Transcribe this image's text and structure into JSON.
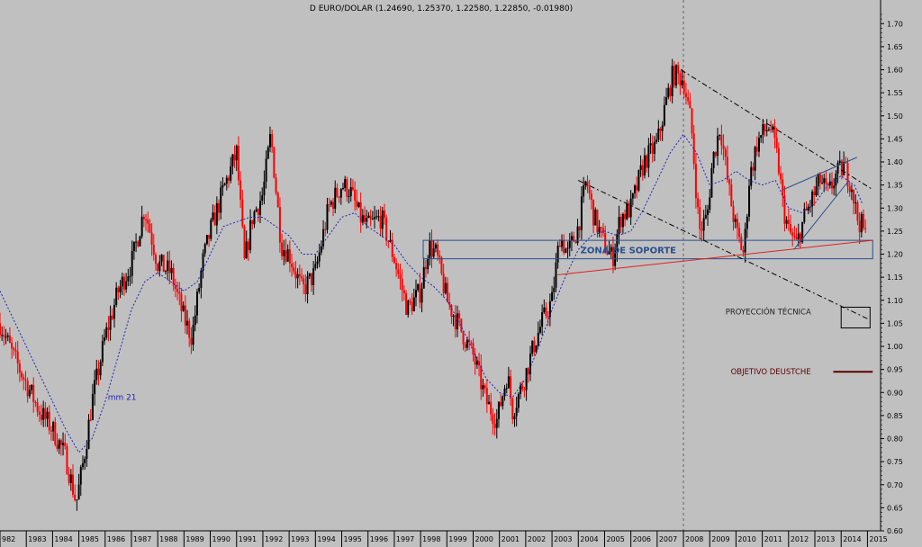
{
  "chart_data": {
    "type": "candlestick",
    "title": "D EURO/DOLAR (1.24690, 1.25370, 1.22580, 1.22850, -0.01980)",
    "xlabel": "",
    "ylabel": "",
    "x_ticks": [
      "982",
      "1983",
      "1984",
      "1985",
      "1986",
      "1987",
      "1988",
      "1989",
      "1990",
      "1991",
      "1992",
      "1993",
      "1994",
      "1995",
      "1996",
      "1997",
      "1998",
      "1999",
      "2000",
      "2001",
      "2002",
      "2003",
      "2004",
      "2005",
      "2006",
      "2007",
      "2008",
      "2009",
      "2010",
      "2011",
      "2012",
      "2013",
      "2014",
      "2015"
    ],
    "xlim": [
      1982.0,
      2015.5
    ],
    "ylim": [
      0.6,
      1.72
    ],
    "y_ticks": [
      "0.60",
      "0.65",
      "0.70",
      "0.75",
      "0.80",
      "0.85",
      "0.90",
      "0.95",
      "1.00",
      "1.05",
      "1.10",
      "1.15",
      "1.20",
      "1.25",
      "1.30",
      "1.35",
      "1.40",
      "1.45",
      "1.50",
      "1.55",
      "1.60",
      "1.65",
      "1.70"
    ],
    "y_axis_position": "right",
    "grid": false,
    "up_color": "#000000",
    "down_color": "#ff0000",
    "price": {
      "x": [
        1982.0,
        1982.5,
        1983.0,
        1983.5,
        1984.0,
        1984.5,
        1984.9,
        1985.2,
        1985.5,
        1986.0,
        1986.5,
        1987.0,
        1987.5,
        1988.0,
        1988.5,
        1989.0,
        1989.3,
        1989.7,
        1990.0,
        1990.5,
        1991.0,
        1991.3,
        1991.6,
        1992.0,
        1992.3,
        1992.7,
        1993.0,
        1993.5,
        1994.0,
        1994.5,
        1995.0,
        1995.3,
        1995.7,
        1996.0,
        1996.5,
        1997.0,
        1997.5,
        1998.0,
        1998.3,
        1998.6,
        1999.0,
        1999.5,
        2000.0,
        2000.5,
        2000.9,
        2001.3,
        2001.5,
        2001.9,
        2002.3,
        2002.6,
        2003.0,
        2003.3,
        2003.6,
        2004.0,
        2004.3,
        2004.6,
        2005.0,
        2005.3,
        2005.6,
        2006.0,
        2006.5,
        2007.0,
        2007.3,
        2007.6,
        2008.0,
        2008.3,
        2008.6,
        2008.9,
        2009.1,
        2009.4,
        2009.7,
        2010.0,
        2010.3,
        2010.5,
        2010.8,
        2011.0,
        2011.3,
        2011.6,
        2011.8,
        2012.0,
        2012.3,
        2012.6,
        2012.9,
        2013.2,
        2013.5,
        2013.8,
        2014.1,
        2014.4,
        2014.6,
        2014.8,
        2015.0
      ],
      "y": [
        1.05,
        0.98,
        0.92,
        0.86,
        0.82,
        0.76,
        0.66,
        0.76,
        0.88,
        1.02,
        1.12,
        1.18,
        1.3,
        1.18,
        1.16,
        1.06,
        1.02,
        1.18,
        1.25,
        1.34,
        1.42,
        1.18,
        1.28,
        1.33,
        1.46,
        1.22,
        1.2,
        1.12,
        1.16,
        1.3,
        1.35,
        1.34,
        1.28,
        1.26,
        1.28,
        1.19,
        1.08,
        1.12,
        1.22,
        1.2,
        1.1,
        1.04,
        0.98,
        0.88,
        0.84,
        0.94,
        0.86,
        0.92,
        1.0,
        1.05,
        1.1,
        1.24,
        1.2,
        1.26,
        1.36,
        1.28,
        1.22,
        1.19,
        1.28,
        1.3,
        1.4,
        1.44,
        1.52,
        1.59,
        1.58,
        1.48,
        1.25,
        1.28,
        1.4,
        1.48,
        1.35,
        1.25,
        1.2,
        1.36,
        1.44,
        1.46,
        1.48,
        1.4,
        1.3,
        1.25,
        1.22,
        1.28,
        1.32,
        1.36,
        1.33,
        1.37,
        1.39,
        1.35,
        1.28,
        1.26,
        1.23
      ]
    },
    "moving_average": {
      "name": "mm 21",
      "color": "#2222bb",
      "x": [
        1982.0,
        1982.5,
        1983.0,
        1983.5,
        1984.0,
        1984.5,
        1985.0,
        1985.5,
        1986.0,
        1986.5,
        1987.0,
        1987.5,
        1988.0,
        1988.5,
        1989.0,
        1989.5,
        1990.0,
        1990.5,
        1991.0,
        1991.5,
        1992.0,
        1992.5,
        1993.0,
        1993.5,
        1994.0,
        1994.5,
        1995.0,
        1995.5,
        1996.0,
        1996.5,
        1997.0,
        1997.5,
        1998.0,
        1998.5,
        1999.0,
        1999.5,
        2000.0,
        2000.5,
        2001.0,
        2001.5,
        2002.0,
        2002.5,
        2003.0,
        2003.5,
        2004.0,
        2004.5,
        2005.0,
        2005.5,
        2006.0,
        2006.5,
        2007.0,
        2007.5,
        2008.0,
        2008.5,
        2009.0,
        2009.5,
        2010.0,
        2010.5,
        2011.0,
        2011.5,
        2012.0,
        2012.5,
        2013.0,
        2013.5,
        2014.0,
        2014.5,
        2014.8
      ],
      "y": [
        1.12,
        1.06,
        1.0,
        0.94,
        0.88,
        0.82,
        0.77,
        0.8,
        0.88,
        0.98,
        1.08,
        1.14,
        1.16,
        1.14,
        1.12,
        1.14,
        1.2,
        1.26,
        1.27,
        1.28,
        1.28,
        1.26,
        1.24,
        1.2,
        1.2,
        1.24,
        1.28,
        1.29,
        1.26,
        1.24,
        1.22,
        1.18,
        1.15,
        1.13,
        1.1,
        1.05,
        0.99,
        0.93,
        0.9,
        0.89,
        0.93,
        1.0,
        1.08,
        1.15,
        1.21,
        1.24,
        1.25,
        1.24,
        1.25,
        1.3,
        1.36,
        1.42,
        1.46,
        1.42,
        1.35,
        1.36,
        1.38,
        1.36,
        1.35,
        1.36,
        1.3,
        1.29,
        1.31,
        1.35,
        1.37,
        1.35,
        1.31
      ]
    },
    "annotations": [
      {
        "type": "rectangle",
        "name": "support-zone",
        "label": "ZONA DE SOPORTE",
        "x": [
          1998.1,
          2015.2
        ],
        "y": [
          1.19,
          1.23
        ],
        "color": "#2a4f8c"
      },
      {
        "type": "trendline",
        "name": "support-trendline",
        "x": [
          2003.2,
          2015.2
        ],
        "y": [
          1.155,
          1.23
        ],
        "color": "#e02020"
      },
      {
        "type": "trendline",
        "name": "upper-dashed-channel",
        "x": [
          2007.9,
          2015.2
        ],
        "y": [
          1.6,
          1.34
        ],
        "color": "#000000",
        "dash": true
      },
      {
        "type": "trendline",
        "name": "lower-dashed-channel",
        "x": [
          2004.0,
          2015.0
        ],
        "y": [
          1.36,
          1.06
        ],
        "color": "#000000",
        "dash": true
      },
      {
        "type": "trendline",
        "name": "wedge-upper",
        "x": [
          2011.8,
          2014.6
        ],
        "y": [
          1.34,
          1.41
        ],
        "color": "#2a4f8c"
      },
      {
        "type": "trendline",
        "name": "wedge-lower",
        "x": [
          2012.2,
          2014.3
        ],
        "y": [
          1.21,
          1.36
        ],
        "color": "#2a4f8c"
      },
      {
        "type": "text",
        "name": "projection-label",
        "label": "PROYECCIÓN TÉCNICA",
        "x": 2009.6,
        "y": 1.075,
        "color": "#222222"
      },
      {
        "type": "rectangle",
        "name": "projection-box",
        "label": "",
        "x": [
          2014.0,
          2015.1
        ],
        "y": [
          1.04,
          1.085
        ],
        "color": "#000000"
      },
      {
        "type": "text",
        "name": "deutsche-target-label",
        "label": "OBJETIVO DEUSTCHE",
        "x": 2009.8,
        "y": 0.945,
        "color": "#5a0000"
      },
      {
        "type": "trendline",
        "name": "deutsche-target-line",
        "x": [
          2013.7,
          2015.2
        ],
        "y": [
          0.945,
          0.945
        ],
        "color": "#5a0000"
      },
      {
        "type": "vline",
        "name": "vertical-dashed-2008",
        "x": 2008.0,
        "color": "#666666",
        "dash": true
      },
      {
        "type": "text",
        "name": "mm21-label",
        "label": "mm 21",
        "x": 1986.1,
        "y": 0.89,
        "color": "#2222bb"
      }
    ]
  }
}
